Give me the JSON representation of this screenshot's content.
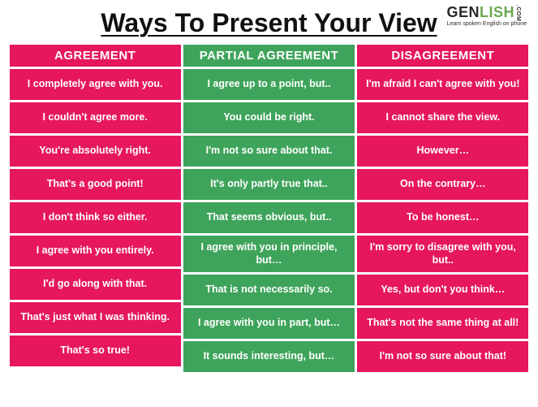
{
  "logo": {
    "part1": "GEN",
    "part2": "LISH",
    "dotcom": ".COM",
    "tagline": "Learn spoken English on phone"
  },
  "title": "Ways To Present Your View",
  "colors": {
    "pink": "#e6165f",
    "green": "#3fa45b",
    "title_text": "#111111",
    "cell_text": "#ffffff"
  },
  "typography": {
    "title_fontsize": 32,
    "header_fontsize": 15,
    "cell_fontsize": 12.5,
    "font_family": "Comic Sans MS"
  },
  "columns": [
    {
      "header": "AGREEMENT",
      "header_bg": "#e6165f",
      "cell_bg": "#e6165f",
      "items": [
        "I completely agree with you.",
        "I couldn't agree more.",
        "You're absolutely right.",
        "That's a good point!",
        "I don't think so either.",
        "I agree with you entirely.",
        "I'd go along with that.",
        "That's just what I was thinking.",
        "That's so true!"
      ]
    },
    {
      "header": "PARTIAL AGREEMENT",
      "header_bg": "#3fa45b",
      "cell_bg": "#3fa45b",
      "items": [
        "I agree up to a point, but..",
        "You could be right.",
        "I'm not so sure about that.",
        "It's only partly true that..",
        "That seems obvious, but..",
        "I agree with you in principle, but…",
        "That is not necessarily so.",
        "I agree with you in part, but…",
        "It sounds interesting, but…"
      ]
    },
    {
      "header": "DISAGREEMENT",
      "header_bg": "#e6165f",
      "cell_bg": "#e6165f",
      "items": [
        "I'm afraid I can't agree with you!",
        "I cannot share the view.",
        "However…",
        "On the contrary…",
        "To be honest…",
        "I'm sorry to disagree with you, but..",
        "Yes, but don't you think…",
        "That's not the same thing at all!",
        "I'm not so sure about that!"
      ]
    }
  ]
}
